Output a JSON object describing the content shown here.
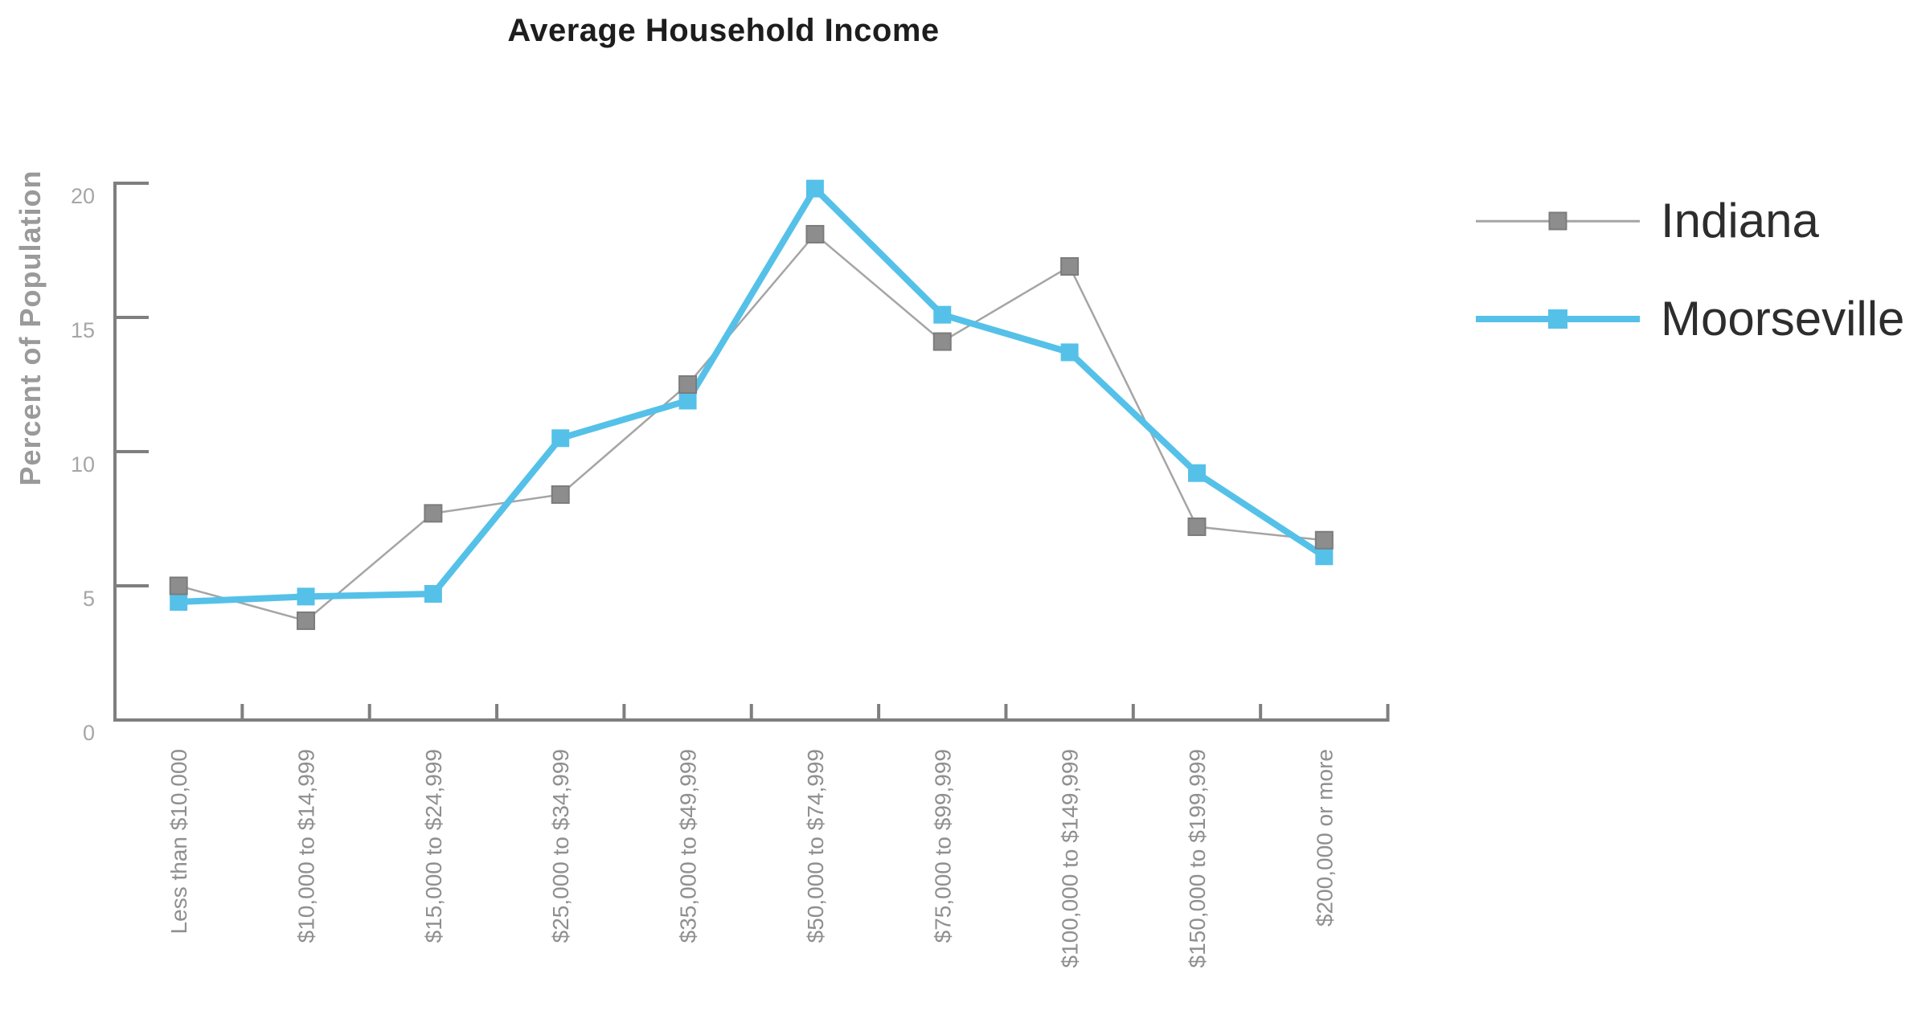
{
  "chart_data": {
    "type": "line",
    "title": "Average Household Income",
    "ylabel": "Percent of Population",
    "xlabel": "",
    "categories": [
      "Less than $10,000",
      "$10,000 to $14,999",
      "$15,000 to $24,999",
      "$25,000 to $34,999",
      "$35,000 to $49,999",
      "$50,000 to $74,999",
      "$75,000 to $99,999",
      "$100,000 to $149,999",
      "$150,000 to $199,999",
      "$200,000 or more"
    ],
    "series": [
      {
        "name": "Indiana",
        "line_color": "#a5a5a5",
        "line_width": 2.5,
        "marker_fill": "#8d8d8d",
        "marker_border": "#7c7c7c",
        "marker_border_width": 2,
        "marker_size": 21,
        "values": [
          5.0,
          3.7,
          7.7,
          8.4,
          12.5,
          18.1,
          14.1,
          16.9,
          7.2,
          6.7
        ]
      },
      {
        "name": "Moorseville",
        "line_color": "#55c1e8",
        "line_width": 8,
        "marker_fill": "#55c1e8",
        "marker_border": "#55c1e8",
        "marker_border_width": 0,
        "marker_size": 22,
        "values": [
          4.4,
          4.6,
          4.7,
          10.5,
          11.9,
          19.8,
          15.1,
          13.7,
          9.2,
          6.1
        ]
      }
    ],
    "y_ticks": [
      0,
      5,
      10,
      15,
      20
    ],
    "ylim": [
      0,
      20
    ],
    "grid": false,
    "legend_position": "right",
    "axis_color": "#7f7f7f",
    "tick_label_color": "#a6a6a6",
    "x_label_color": "#8f8f8f",
    "title_color": "#1d1d1d",
    "ylabel_color": "#9a9a9a",
    "legend_text_color": "#2d2d2d"
  }
}
